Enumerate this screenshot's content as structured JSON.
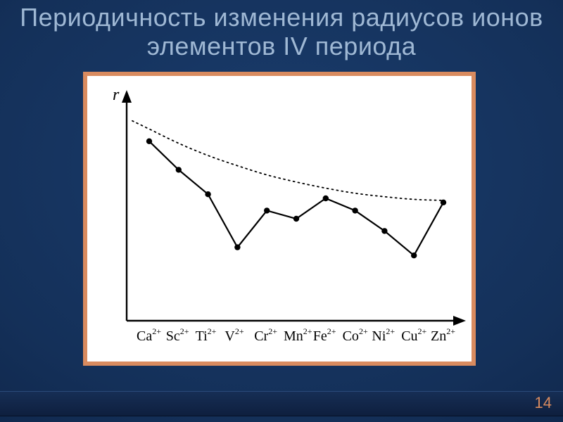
{
  "slide": {
    "title": "Периодичность изменения радиусов ионов элементов IV периода",
    "page_number": "14",
    "background_gradient": [
      "#1a3d6e",
      "#143059",
      "#0e2447",
      "#0a1c3a"
    ],
    "title_color": "#9fb8d4",
    "accent_color": "#d98b5f"
  },
  "chart": {
    "type": "line",
    "y_axis_label": "r",
    "y_axis_label_fontsize": 24,
    "ion_label_fontsize": 20,
    "frame_border_color": "#d98b5f",
    "plot_bg": "#ffffff",
    "axis_color": "#000000",
    "line_color": "#000000",
    "line_width": 2.2,
    "marker_color": "#000000",
    "marker_radius": 4.2,
    "dotted_curve_color": "#000000",
    "x_categories": [
      "Ca",
      "Sc",
      "Ti",
      "V",
      "Cr",
      "Mn",
      "Fe",
      "Co",
      "Ni",
      "Cu",
      "Zn"
    ],
    "superscript": "2+",
    "y_values": [
      88,
      74,
      62,
      36,
      54,
      50,
      60,
      54,
      44,
      32,
      58
    ],
    "dotted_y_values": [
      94,
      87,
      81,
      76,
      71.5,
      68,
      65,
      62.5,
      60.8,
      59.5,
      59
    ],
    "y_min": 0,
    "y_max": 100
  }
}
